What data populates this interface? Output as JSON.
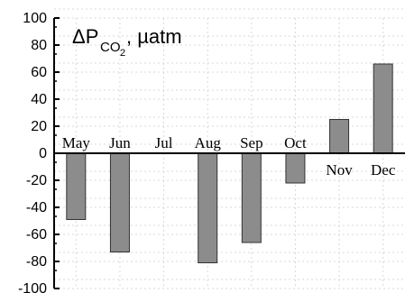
{
  "chart_data": {
    "type": "bar",
    "title": {
      "delta": "ΔP",
      "subscript": "CO",
      "subscript_index": "2",
      "unit": ", µatm"
    },
    "categories": [
      "May",
      "Jun",
      "Jul",
      "Aug",
      "Sep",
      "Oct",
      "Nov",
      "Dec"
    ],
    "values": [
      -49,
      -73,
      null,
      -81,
      -66,
      -22,
      25,
      66
    ],
    "ylim": [
      -100,
      100
    ],
    "yticks": [
      100,
      80,
      60,
      40,
      20,
      0,
      -20,
      -40,
      -60,
      -80,
      -100
    ],
    "grid": true,
    "bar_color": "#8c8c8c",
    "bar_stroke": "#333333",
    "grid_color": "#d9d9d9"
  }
}
